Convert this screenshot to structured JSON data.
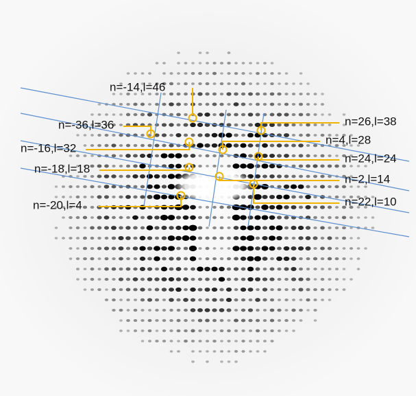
{
  "labels": [
    "n=-14,l=46",
    "n=-36,l=36",
    "n=-16,l=32",
    "n=-18,l=18",
    "n=-20,l=4",
    "n=26,l=38",
    "n=4,l=28",
    "n=24,l=24",
    "n=2,l=14",
    "n=22,l=10"
  ]
}
